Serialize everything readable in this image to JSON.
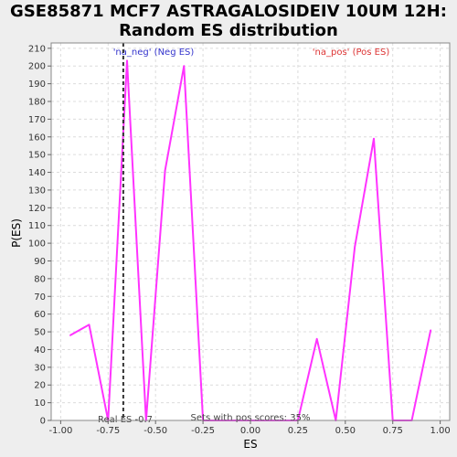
{
  "chart_data": {
    "type": "line",
    "title_line1": "GSE85871 MCF7 ASTRAGALOSIDEIV 10UM 12H:",
    "title_line2": "Random ES distribution",
    "xlabel": "ES",
    "ylabel": "P(ES)",
    "xlim": [
      -1.05,
      1.05
    ],
    "ylim": [
      0,
      213
    ],
    "x_ticks": [
      -1.0,
      -0.75,
      -0.5,
      -0.25,
      0.0,
      0.25,
      0.5,
      0.75,
      1.0
    ],
    "x_tick_labels": [
      "-1.00",
      "-0.75",
      "-0.50",
      "-0.25",
      "0.00",
      "0.25",
      "0.50",
      "0.75",
      "1.00"
    ],
    "y_ticks": [
      0,
      10,
      20,
      30,
      40,
      50,
      60,
      70,
      80,
      90,
      100,
      110,
      120,
      130,
      140,
      150,
      160,
      170,
      180,
      190,
      200,
      210
    ],
    "grid": true,
    "series": [
      {
        "color": "#ff33ff",
        "x": [
          -0.95,
          -0.85,
          -0.75,
          -0.65,
          -0.55,
          -0.45,
          -0.35,
          -0.25,
          -0.15,
          -0.05,
          0.05,
          0.15,
          0.25,
          0.35,
          0.45,
          0.55,
          0.65,
          0.75,
          0.85,
          0.95
        ],
        "values": [
          48,
          54,
          0,
          203,
          0,
          141,
          200,
          0,
          0,
          0,
          0,
          0,
          0,
          46,
          0,
          98,
          159,
          0,
          0,
          51
        ]
      }
    ],
    "real_es": -0.67,
    "real_es_label": "Real ES -0.7",
    "neg_label": "'na_neg' (Neg ES)",
    "pos_label": "'na_pos' (Pos ES)",
    "neg_color": "#3333cc",
    "pos_color": "#dd3333",
    "footer_label": "Sets with pos scores: 35%"
  }
}
